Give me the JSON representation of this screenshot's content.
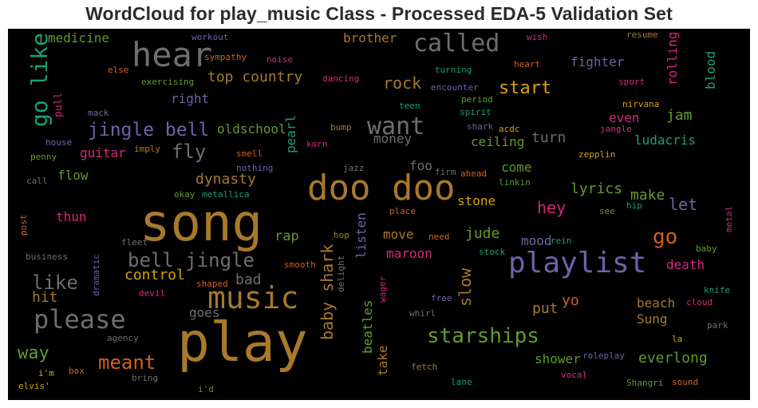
{
  "title": "WordCloud for play_music Class - Processed EDA-5 Validation Set",
  "palette": {
    "brown": "#a8792a",
    "gray": "#6e6e6e",
    "purple": "#6c63a8",
    "teal": "#1b9e77",
    "orange": "#d3601a",
    "pink": "#d6287c",
    "green": "#5f9c2a",
    "gold": "#d6a20c"
  },
  "words": [
    {
      "text": "play",
      "color": "#a8792a"
    },
    {
      "text": "song",
      "color": "#a8792a"
    },
    {
      "text": "doo doo",
      "color": "#a8792a"
    },
    {
      "text": "hear",
      "color": "#6e6e6e"
    },
    {
      "text": "playlist",
      "color": "#6c63a8"
    },
    {
      "text": "music",
      "color": "#a8792a"
    },
    {
      "text": "please",
      "color": "#6e6e6e"
    },
    {
      "text": "go like",
      "color": "#1b9e77"
    },
    {
      "text": "called",
      "color": "#6e6e6e"
    },
    {
      "text": "want",
      "color": "#6e6e6e"
    },
    {
      "text": "bell jingle",
      "color": "#6e6e6e"
    },
    {
      "text": "jingle bell",
      "color": "#6c63a8"
    },
    {
      "text": "starships",
      "color": "#5f9c2a"
    },
    {
      "text": "baby shark",
      "color": "#a8792a"
    },
    {
      "text": "like",
      "color": "#6e6e6e"
    },
    {
      "text": "fly",
      "color": "#6e6e6e"
    },
    {
      "text": "go",
      "color": "#d3601a"
    },
    {
      "text": "meant",
      "color": "#d3601a"
    },
    {
      "text": "start",
      "color": "#d6a20c"
    },
    {
      "text": "rock",
      "color": "#a8792a"
    },
    {
      "text": "slow",
      "color": "#a8792a"
    },
    {
      "text": "way",
      "color": "#5f9c2a"
    },
    {
      "text": "top country",
      "color": "#a8792a"
    },
    {
      "text": "hey",
      "color": "#d6287c"
    },
    {
      "text": "beatles",
      "color": "#5f9c2a"
    },
    {
      "text": "listen",
      "color": "#6c63a8"
    },
    {
      "text": "pearl",
      "color": "#1b9e77"
    },
    {
      "text": "rolling",
      "color": "#d6287c"
    },
    {
      "text": "blood",
      "color": "#1b9e77"
    },
    {
      "text": "dynasty",
      "color": "#a8792a"
    },
    {
      "text": "oldschool",
      "color": "#5f9c2a"
    },
    {
      "text": "lyrics",
      "color": "#5f9c2a"
    },
    {
      "text": "make",
      "color": "#5f9c2a"
    },
    {
      "text": "let",
      "color": "#6c63a8"
    },
    {
      "text": "hit",
      "color": "#a8792a"
    },
    {
      "text": "control",
      "color": "#d6a20c"
    },
    {
      "text": "bad",
      "color": "#6e6e6e"
    },
    {
      "text": "medicine",
      "color": "#5f9c2a"
    },
    {
      "text": "brother",
      "color": "#a8792a"
    },
    {
      "text": "fighter",
      "color": "#6c63a8"
    },
    {
      "text": "jam",
      "color": "#5f9c2a"
    },
    {
      "text": "even",
      "color": "#d6287c"
    },
    {
      "text": "ludacris",
      "color": "#1b9e77"
    },
    {
      "text": "turn",
      "color": "#6e6e6e"
    },
    {
      "text": "ceiling",
      "color": "#5f9c2a"
    },
    {
      "text": "money",
      "color": "#6e6e6e"
    },
    {
      "text": "guitar",
      "color": "#d6287c"
    },
    {
      "text": "flow",
      "color": "#5f9c2a"
    },
    {
      "text": "thun",
      "color": "#d6287c"
    },
    {
      "text": "rap",
      "color": "#5f9c2a"
    },
    {
      "text": "move",
      "color": "#a8792a"
    },
    {
      "text": "jude",
      "color": "#5f9c2a"
    },
    {
      "text": "maroon",
      "color": "#d6287c"
    },
    {
      "text": "mood",
      "color": "#6c63a8"
    },
    {
      "text": "death",
      "color": "#d6287c"
    },
    {
      "text": "yo",
      "color": "#d3601a"
    },
    {
      "text": "put",
      "color": "#a8792a"
    },
    {
      "text": "beach",
      "color": "#a8792a"
    },
    {
      "text": "Sung",
      "color": "#a8792a"
    },
    {
      "text": "take",
      "color": "#a8792a"
    },
    {
      "text": "shower",
      "color": "#5f9c2a"
    },
    {
      "text": "everlong",
      "color": "#5f9c2a"
    },
    {
      "text": "goes",
      "color": "#6e6e6e"
    },
    {
      "text": "right",
      "color": "#6c63a8"
    },
    {
      "text": "stone",
      "color": "#d6a20c"
    },
    {
      "text": "come",
      "color": "#5f9c2a"
    },
    {
      "text": "foo",
      "color": "#6e6e6e"
    },
    {
      "text": "workout",
      "color": "#6c63a8"
    },
    {
      "text": "sympathy",
      "color": "#d3601a"
    },
    {
      "text": "noise",
      "color": "#d6287c"
    },
    {
      "text": "else",
      "color": "#d3601a"
    },
    {
      "text": "exercising",
      "color": "#5f9c2a"
    },
    {
      "text": "dancing",
      "color": "#d6287c"
    },
    {
      "text": "pull",
      "color": "#d6287c"
    },
    {
      "text": "mack",
      "color": "#6c63a8"
    },
    {
      "text": "house",
      "color": "#6c63a8"
    },
    {
      "text": "imply",
      "color": "#a8792a"
    },
    {
      "text": "smell",
      "color": "#d3601a"
    },
    {
      "text": "penny",
      "color": "#5f9c2a"
    },
    {
      "text": "call",
      "color": "#6e6e6e"
    },
    {
      "text": "nothing",
      "color": "#6c63a8"
    },
    {
      "text": "korn",
      "color": "#d6287c"
    },
    {
      "text": "bump",
      "color": "#a8792a"
    },
    {
      "text": "jazz",
      "color": "#6e6e6e"
    },
    {
      "text": "okay",
      "color": "#5f9c2a"
    },
    {
      "text": "metallica",
      "color": "#1b9e77"
    },
    {
      "text": "post",
      "color": "#d3601a"
    },
    {
      "text": "fleet",
      "color": "#6e6e6e"
    },
    {
      "text": "business",
      "color": "#6e6e6e"
    },
    {
      "text": "dramatic",
      "color": "#6c63a8"
    },
    {
      "text": "hop",
      "color": "#a8792a"
    },
    {
      "text": "smooth",
      "color": "#d3601a"
    },
    {
      "text": "shaped",
      "color": "#d3601a"
    },
    {
      "text": "devil",
      "color": "#d6287c"
    },
    {
      "text": "delight",
      "color": "#6e6e6e"
    },
    {
      "text": "wager",
      "color": "#d6287c"
    },
    {
      "text": "agency",
      "color": "#6e6e6e"
    },
    {
      "text": "i'm",
      "color": "#d6a20c"
    },
    {
      "text": "box",
      "color": "#d3601a"
    },
    {
      "text": "bring",
      "color": "#6e6e6e"
    },
    {
      "text": "elvis'",
      "color": "#d6a20c"
    },
    {
      "text": "i'd",
      "color": "#5f9c2a"
    },
    {
      "text": "whirl",
      "color": "#6e6e6e"
    },
    {
      "text": "free",
      "color": "#6c63a8"
    },
    {
      "text": "fetch",
      "color": "#a8792a"
    },
    {
      "text": "lane",
      "color": "#1b9e77"
    },
    {
      "text": "need",
      "color": "#d3601a"
    },
    {
      "text": "stock",
      "color": "#1b9e77"
    },
    {
      "text": "rein",
      "color": "#1b9e77"
    },
    {
      "text": "place",
      "color": "#d3601a"
    },
    {
      "text": "see",
      "color": "#5f9c2a"
    },
    {
      "text": "hip",
      "color": "#1b9e77"
    },
    {
      "text": "metal",
      "color": "#d6287c"
    },
    {
      "text": "baby",
      "color": "#5f9c2a"
    },
    {
      "text": "knife",
      "color": "#1b9e77"
    },
    {
      "text": "cloud",
      "color": "#d6287c"
    },
    {
      "text": "park",
      "color": "#6e6e6e"
    },
    {
      "text": "la",
      "color": "#d6a20c"
    },
    {
      "text": "roleplay",
      "color": "#6c63a8"
    },
    {
      "text": "vocal",
      "color": "#d6287c"
    },
    {
      "text": "Shangri",
      "color": "#5f9c2a"
    },
    {
      "text": "sound",
      "color": "#d3601a"
    },
    {
      "text": "wish",
      "color": "#d6287c"
    },
    {
      "text": "resume",
      "color": "#a8792a"
    },
    {
      "text": "heart",
      "color": "#d3601a"
    },
    {
      "text": "sport",
      "color": "#d6287c"
    },
    {
      "text": "turning",
      "color": "#1b9e77"
    },
    {
      "text": "encounter",
      "color": "#6c63a8"
    },
    {
      "text": "period",
      "color": "#5f9c2a"
    },
    {
      "text": "teen",
      "color": "#1b9e77"
    },
    {
      "text": "spirit",
      "color": "#1b9e77"
    },
    {
      "text": "nirvana",
      "color": "#d6a20c"
    },
    {
      "text": "shark",
      "color": "#6c63a8"
    },
    {
      "text": "acdc",
      "color": "#d6a20c"
    },
    {
      "text": "jangle",
      "color": "#d6287c"
    },
    {
      "text": "zepplin",
      "color": "#d6a20c"
    },
    {
      "text": "firm",
      "color": "#6e6e6e"
    },
    {
      "text": "ahead",
      "color": "#d3601a"
    },
    {
      "text": "linkin",
      "color": "#5f9c2a"
    }
  ]
}
